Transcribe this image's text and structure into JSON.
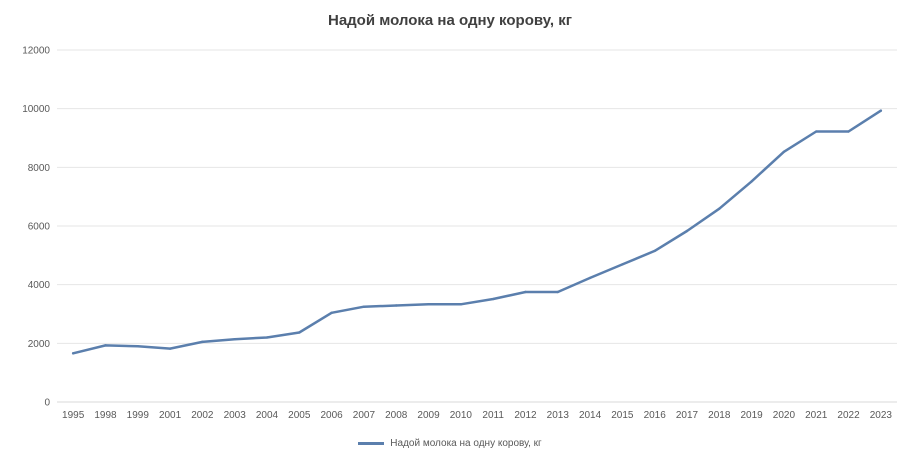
{
  "chart_data": {
    "type": "line",
    "title": "Надой молока на одну корову, кг",
    "xlabel": "",
    "ylabel": "",
    "categories": [
      "1995",
      "1998",
      "1999",
      "2001",
      "2002",
      "2003",
      "2004",
      "2005",
      "2006",
      "2007",
      "2008",
      "2009",
      "2010",
      "2011",
      "2012",
      "2013",
      "2014",
      "2015",
      "2016",
      "2017",
      "2018",
      "2019",
      "2020",
      "2021",
      "2022",
      "2023"
    ],
    "series": [
      {
        "name": "Надой молока на одну корову, кг",
        "color": "#5b7fad",
        "values": [
          1660,
          1930,
          1900,
          1820,
          2050,
          2140,
          2200,
          2370,
          3040,
          3250,
          3290,
          3330,
          3330,
          3510,
          3750,
          3750,
          4230,
          4690,
          5150,
          5830,
          6590,
          7520,
          8530,
          9220,
          9220,
          9930
        ]
      }
    ],
    "ylim": [
      0,
      12000
    ],
    "yticks": [
      0,
      2000,
      4000,
      6000,
      8000,
      10000,
      12000
    ],
    "grid": true,
    "legend_position": "bottom"
  }
}
